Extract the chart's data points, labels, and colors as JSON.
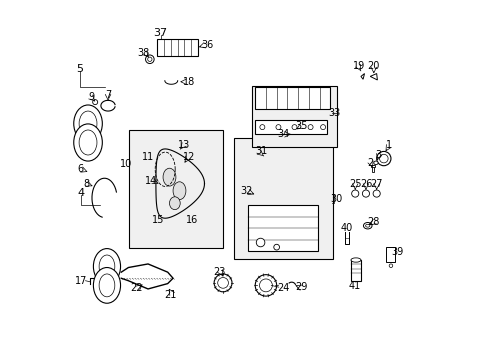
{
  "bg_color": "#ffffff",
  "fig_width": 4.89,
  "fig_height": 3.6,
  "dpi": 100,
  "font_size": 7
}
